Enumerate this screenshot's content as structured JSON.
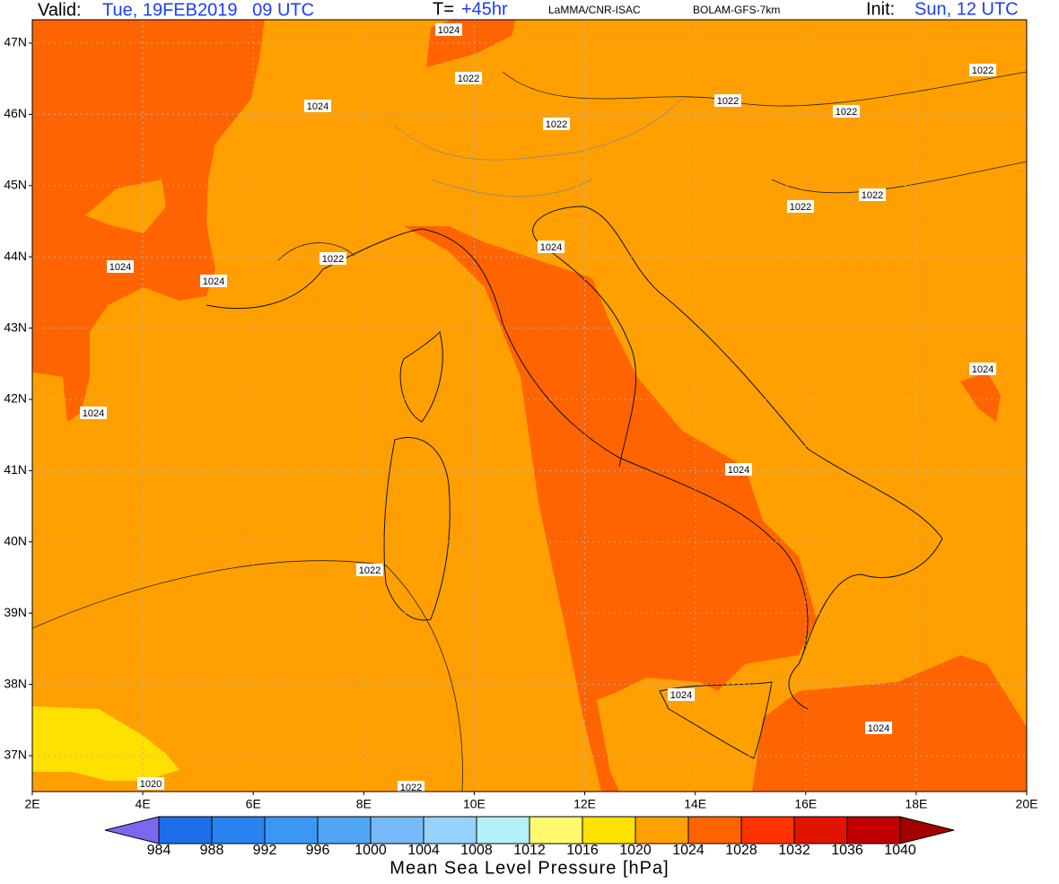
{
  "header": {
    "valid_label": "Valid:",
    "valid_time": "Tue, 19FEB2019   09 UTC",
    "forecast_label": "T=",
    "forecast_step": "+45hr",
    "producer": "LaMMA/CNR-ISAC",
    "model": "BOLAM-GFS-7km",
    "init_label": "Init:",
    "init_time": "Sun, 12 UTC"
  },
  "map": {
    "lat_labels": [
      "47N",
      "46N",
      "45N",
      "44N",
      "43N",
      "42N",
      "41N",
      "40N",
      "39N",
      "38N",
      "37N"
    ],
    "lon_labels": [
      "2E",
      "4E",
      "6E",
      "8E",
      "10E",
      "12E",
      "14E",
      "16E",
      "18E",
      "20E"
    ],
    "contour_labels": [
      "1024",
      "1022",
      "1024",
      "1022",
      "1022",
      "1022",
      "1022",
      "1022",
      "1022",
      "1024",
      "1022",
      "1024",
      "1024",
      "1024",
      "1024",
      "1024",
      "1022",
      "1024",
      "1024",
      "1020",
      "1022"
    ]
  },
  "colorbar": {
    "levels": [
      984,
      988,
      992,
      996,
      1000,
      1004,
      1008,
      1012,
      1016,
      1020,
      1024,
      1028,
      1032,
      1036,
      1040
    ],
    "colors": [
      "#7b68ee",
      "#1e6eeb",
      "#2882f0",
      "#3c96f5",
      "#50a5f5",
      "#78b9fa",
      "#96d2fa",
      "#b4f0fa",
      "#fffa6e",
      "#ffe100",
      "#ffa000",
      "#ff6400",
      "#ff3200",
      "#e11400",
      "#c00000",
      "#a50000"
    ],
    "title": "Mean Sea Level Pressure [hPa]"
  }
}
